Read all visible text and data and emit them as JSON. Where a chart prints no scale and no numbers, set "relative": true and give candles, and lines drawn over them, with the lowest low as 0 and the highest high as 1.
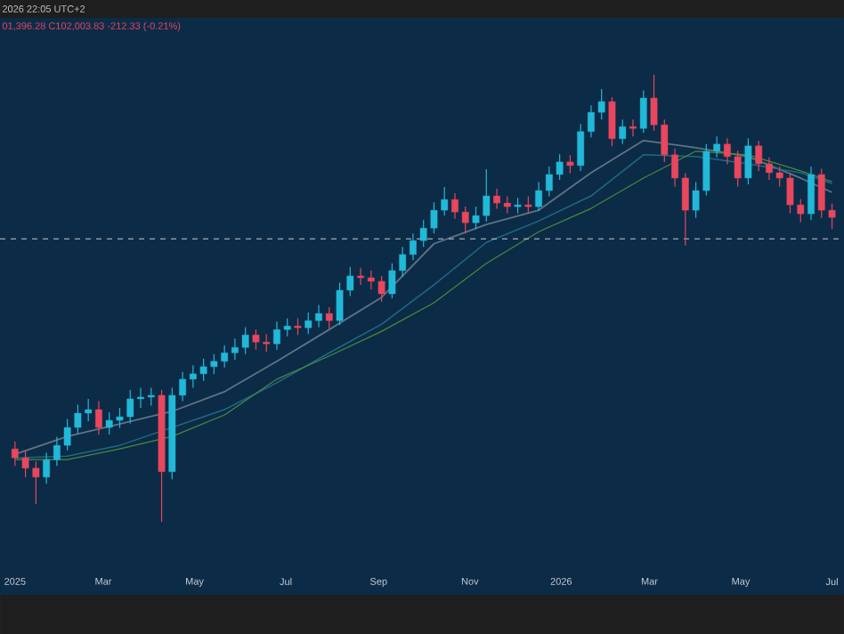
{
  "chart_data": {
    "type": "candlestick",
    "relative": true,
    "tick_labels": "x",
    "annotations": [
      "2026 22:05 UTC+2",
      "01,396.28 C102,003.83 -212.33 (-0.21%)"
    ],
    "x": [
      "2025-01-01",
      "2025-01-08",
      "2025-01-15",
      "2025-01-22",
      "2025-01-29",
      "2025-02-05",
      "2025-02-12",
      "2025-02-19",
      "2025-02-26",
      "2025-03-05",
      "2025-03-12",
      "2025-03-19",
      "2025-03-26",
      "2025-04-02",
      "2025-04-09",
      "2025-04-16",
      "2025-04-23",
      "2025-04-30",
      "2025-05-07",
      "2025-05-14",
      "2025-05-21",
      "2025-05-28",
      "2025-06-04",
      "2025-06-11",
      "2025-06-18",
      "2025-06-25",
      "2025-07-02",
      "2025-07-09",
      "2025-07-16",
      "2025-07-23",
      "2025-07-30",
      "2025-08-06",
      "2025-08-13",
      "2025-08-20",
      "2025-08-27",
      "2025-09-03",
      "2025-09-10",
      "2025-09-17",
      "2025-09-24",
      "2025-10-01",
      "2025-10-08",
      "2025-10-15",
      "2025-10-22",
      "2025-10-29",
      "2025-11-05",
      "2025-11-12",
      "2025-11-19",
      "2025-11-26",
      "2025-12-03",
      "2025-12-10",
      "2025-12-17",
      "2025-12-24",
      "2025-12-31",
      "2026-01-07",
      "2026-01-14",
      "2026-01-21",
      "2026-01-28",
      "2026-02-04",
      "2026-02-11",
      "2026-02-18",
      "2026-02-25",
      "2026-03-04",
      "2026-03-11",
      "2026-03-18",
      "2026-03-25",
      "2026-04-01",
      "2026-04-08",
      "2026-04-15",
      "2026-04-22",
      "2026-04-29",
      "2026-05-06",
      "2026-05-13",
      "2026-05-20",
      "2026-05-27",
      "2026-06-03",
      "2026-06-10",
      "2026-06-17",
      "2026-06-24",
      "2026-07-01"
    ],
    "ohlc": [
      [
        0.163,
        0.18,
        0.125,
        0.143
      ],
      [
        0.143,
        0.16,
        0.1,
        0.12
      ],
      [
        0.12,
        0.135,
        0.04,
        0.1
      ],
      [
        0.1,
        0.155,
        0.085,
        0.139
      ],
      [
        0.139,
        0.19,
        0.125,
        0.171
      ],
      [
        0.171,
        0.23,
        0.16,
        0.211
      ],
      [
        0.211,
        0.262,
        0.198,
        0.243
      ],
      [
        0.243,
        0.275,
        0.225,
        0.251
      ],
      [
        0.251,
        0.27,
        0.195,
        0.211
      ],
      [
        0.211,
        0.245,
        0.195,
        0.227
      ],
      [
        0.227,
        0.255,
        0.21,
        0.235
      ],
      [
        0.235,
        0.295,
        0.22,
        0.275
      ],
      [
        0.275,
        0.3,
        0.255,
        0.279
      ],
      [
        0.279,
        0.3,
        0.26,
        0.283
      ],
      [
        0.283,
        0.295,
        0.0,
        0.112
      ],
      [
        0.112,
        0.3,
        0.095,
        0.283
      ],
      [
        0.283,
        0.335,
        0.27,
        0.319
      ],
      [
        0.319,
        0.35,
        0.3,
        0.331
      ],
      [
        0.331,
        0.365,
        0.315,
        0.347
      ],
      [
        0.347,
        0.375,
        0.33,
        0.359
      ],
      [
        0.359,
        0.395,
        0.345,
        0.378
      ],
      [
        0.378,
        0.41,
        0.362,
        0.39
      ],
      [
        0.39,
        0.435,
        0.375,
        0.418
      ],
      [
        0.418,
        0.43,
        0.385,
        0.402
      ],
      [
        0.402,
        0.42,
        0.38,
        0.398
      ],
      [
        0.398,
        0.448,
        0.385,
        0.43
      ],
      [
        0.43,
        0.455,
        0.415,
        0.438
      ],
      [
        0.438,
        0.455,
        0.418,
        0.434
      ],
      [
        0.434,
        0.468,
        0.42,
        0.45
      ],
      [
        0.45,
        0.485,
        0.435,
        0.466
      ],
      [
        0.466,
        0.48,
        0.432,
        0.45
      ],
      [
        0.45,
        0.535,
        0.44,
        0.518
      ],
      [
        0.518,
        0.57,
        0.505,
        0.55
      ],
      [
        0.55,
        0.568,
        0.53,
        0.546
      ],
      [
        0.546,
        0.562,
        0.52,
        0.538
      ],
      [
        0.538,
        0.55,
        0.492,
        0.51
      ],
      [
        0.51,
        0.578,
        0.5,
        0.562
      ],
      [
        0.562,
        0.615,
        0.548,
        0.598
      ],
      [
        0.598,
        0.645,
        0.585,
        0.629
      ],
      [
        0.629,
        0.675,
        0.615,
        0.657
      ],
      [
        0.657,
        0.715,
        0.645,
        0.697
      ],
      [
        0.697,
        0.749,
        0.685,
        0.721
      ],
      [
        0.721,
        0.735,
        0.678,
        0.693
      ],
      [
        0.693,
        0.705,
        0.645,
        0.669
      ],
      [
        0.669,
        0.705,
        0.655,
        0.685
      ],
      [
        0.685,
        0.789,
        0.672,
        0.729
      ],
      [
        0.729,
        0.745,
        0.7,
        0.713
      ],
      [
        0.713,
        0.728,
        0.69,
        0.705
      ],
      [
        0.705,
        0.725,
        0.69,
        0.709
      ],
      [
        0.709,
        0.728,
        0.69,
        0.705
      ],
      [
        0.705,
        0.76,
        0.695,
        0.741
      ],
      [
        0.741,
        0.795,
        0.728,
        0.777
      ],
      [
        0.777,
        0.822,
        0.765,
        0.805
      ],
      [
        0.805,
        0.82,
        0.78,
        0.797
      ],
      [
        0.797,
        0.89,
        0.785,
        0.873
      ],
      [
        0.873,
        0.932,
        0.86,
        0.916
      ],
      [
        0.916,
        0.968,
        0.9,
        0.94
      ],
      [
        0.94,
        0.95,
        0.84,
        0.857
      ],
      [
        0.857,
        0.9,
        0.845,
        0.884
      ],
      [
        0.884,
        0.9,
        0.862,
        0.88
      ],
      [
        0.88,
        0.965,
        0.87,
        0.948
      ],
      [
        0.948,
        1.0,
        0.875,
        0.888
      ],
      [
        0.888,
        0.9,
        0.805,
        0.821
      ],
      [
        0.821,
        0.835,
        0.75,
        0.769
      ],
      [
        0.769,
        0.78,
        0.618,
        0.697
      ],
      [
        0.697,
        0.76,
        0.68,
        0.741
      ],
      [
        0.741,
        0.845,
        0.73,
        0.829
      ],
      [
        0.829,
        0.862,
        0.815,
        0.845
      ],
      [
        0.845,
        0.858,
        0.8,
        0.817
      ],
      [
        0.817,
        0.83,
        0.75,
        0.769
      ],
      [
        0.769,
        0.858,
        0.755,
        0.841
      ],
      [
        0.841,
        0.852,
        0.785,
        0.801
      ],
      [
        0.801,
        0.815,
        0.765,
        0.781
      ],
      [
        0.781,
        0.795,
        0.75,
        0.769
      ],
      [
        0.769,
        0.78,
        0.69,
        0.709
      ],
      [
        0.709,
        0.722,
        0.67,
        0.689
      ],
      [
        0.689,
        0.795,
        0.675,
        0.777
      ],
      [
        0.777,
        0.79,
        0.68,
        0.697
      ],
      [
        0.697,
        0.712,
        0.655,
        0.681
      ]
    ],
    "series": [
      {
        "type": "line",
        "color": "#5f7384",
        "x": [
          "2025-01-01",
          "2025-02-05",
          "2025-03-12",
          "2025-04-16",
          "2025-05-21",
          "2025-06-25",
          "2025-07-30",
          "2025-09-03",
          "2025-10-08",
          "2025-11-12",
          "2025-12-17",
          "2026-01-21",
          "2026-02-25",
          "2026-04-01",
          "2026-05-06",
          "2026-06-10",
          "2026-07-01"
        ],
        "values": [
          0.151,
          0.191,
          0.219,
          0.247,
          0.291,
          0.359,
          0.43,
          0.502,
          0.622,
          0.665,
          0.697,
          0.781,
          0.853,
          0.837,
          0.817,
          0.769,
          0.737
        ]
      },
      {
        "type": "line",
        "color": "#1d6a86",
        "x": [
          "2025-01-01",
          "2025-02-05",
          "2025-03-12",
          "2025-04-16",
          "2025-05-21",
          "2025-06-25",
          "2025-07-30",
          "2025-09-03",
          "2025-10-08",
          "2025-11-12",
          "2025-12-17",
          "2026-01-21",
          "2026-02-25",
          "2026-04-01",
          "2026-05-06",
          "2026-06-10",
          "2026-07-01"
        ],
        "values": [
          0.143,
          0.147,
          0.171,
          0.211,
          0.251,
          0.311,
          0.378,
          0.442,
          0.53,
          0.625,
          0.673,
          0.729,
          0.821,
          0.817,
          0.801,
          0.781,
          0.757
        ]
      },
      {
        "type": "line",
        "color": "#4a8a3c",
        "x": [
          "2025-01-01",
          "2025-02-05",
          "2025-03-12",
          "2025-04-16",
          "2025-05-21",
          "2025-06-25",
          "2025-07-30",
          "2025-09-03",
          "2025-10-08",
          "2025-11-12",
          "2025-12-17",
          "2026-01-21",
          "2026-02-25",
          "2026-04-01",
          "2026-05-06",
          "2026-06-10",
          "2026-07-01"
        ],
        "values": [
          0.139,
          0.139,
          0.163,
          0.191,
          0.239,
          0.319,
          0.371,
          0.426,
          0.49,
          0.578,
          0.649,
          0.701,
          0.769,
          0.829,
          0.821,
          0.785,
          0.761
        ]
      }
    ],
    "ref_lines": [
      {
        "axis": "y",
        "value": 0.633,
        "color": "#c8ccd0",
        "line_style": "dashed"
      }
    ],
    "xlim": [
      "2024-12-22",
      "2026-07-09"
    ],
    "xticks": [
      {
        "value": "2025-01-01",
        "label": "2025"
      },
      {
        "value": "2025-03-01",
        "label": "Mar"
      },
      {
        "value": "2025-05-01",
        "label": "May"
      },
      {
        "value": "2025-07-01",
        "label": "Jul"
      },
      {
        "value": "2025-09-01",
        "label": "Sep"
      },
      {
        "value": "2025-11-01",
        "label": "Nov"
      },
      {
        "value": "2026-01-01",
        "label": "2026"
      },
      {
        "value": "2026-03-01",
        "label": "Mar"
      },
      {
        "value": "2026-05-01",
        "label": "May"
      },
      {
        "value": "2026-07-01",
        "label": "Jul"
      }
    ]
  }
}
